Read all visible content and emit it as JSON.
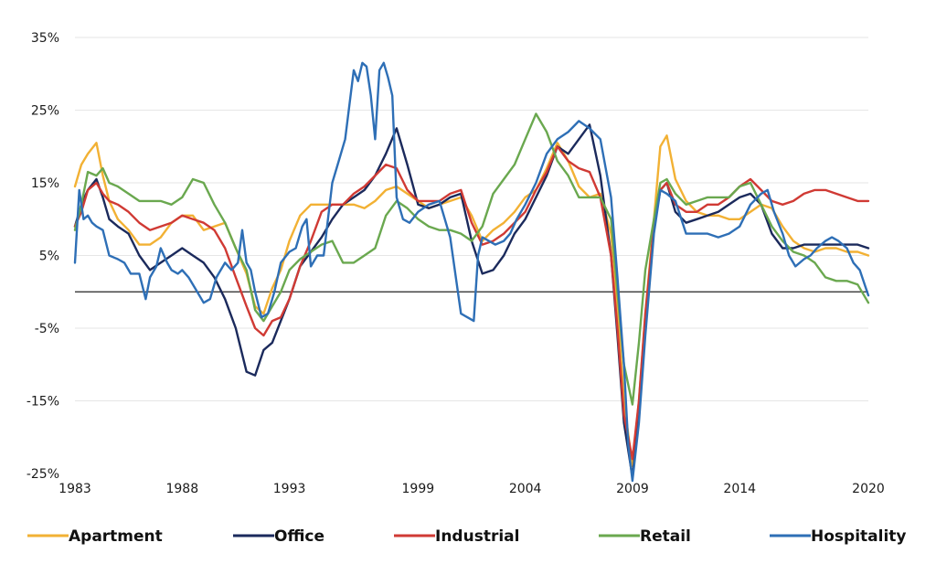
{
  "chart_data": {
    "type": "line",
    "title": "",
    "xlabel": "",
    "ylabel": "",
    "xlim": [
      1983,
      2020
    ],
    "ylim": [
      -25,
      35
    ],
    "x_ticks": [
      "1983",
      "1988",
      "1993",
      "1999",
      "2004",
      "2009",
      "2014",
      "2020"
    ],
    "y_ticks": [
      "35%",
      "25%",
      "15%",
      "5%",
      "-5%",
      "-15%",
      "-25%"
    ],
    "grid": "horizontal",
    "zero_line": true,
    "legend": "bottom",
    "series": [
      {
        "name": "Apartment",
        "color": "#f2b134",
        "x": [
          1983.0,
          1983.3,
          1983.6,
          1984.0,
          1984.3,
          1984.6,
          1985.0,
          1985.5,
          1986.0,
          1986.5,
          1987.0,
          1987.5,
          1988.0,
          1988.5,
          1989.0,
          1989.5,
          1990.0,
          1990.5,
          1991.0,
          1991.4,
          1991.8,
          1992.2,
          1992.6,
          1993.0,
          1993.5,
          1994.0,
          1994.5,
          1995.0,
          1995.5,
          1996.0,
          1996.5,
          1997.0,
          1997.5,
          1998.0,
          1998.5,
          1999.0,
          1999.5,
          2000.0,
          2000.5,
          2001.0,
          2001.5,
          2002.0,
          2002.5,
          2003.0,
          2003.5,
          2004.0,
          2004.5,
          2005.0,
          2005.5,
          2006.0,
          2006.5,
          2007.0,
          2007.5,
          2008.0,
          2008.3,
          2008.6,
          2009.0,
          2009.3,
          2009.6,
          2010.0,
          2010.3,
          2010.6,
          2011.0,
          2011.5,
          2012.0,
          2012.5,
          2013.0,
          2013.5,
          2014.0,
          2014.5,
          2015.0,
          2015.5,
          2016.0,
          2016.5,
          2017.0,
          2017.5,
          2018.0,
          2018.5,
          2019.0,
          2019.5,
          2020.0
        ],
        "y": [
          14.5,
          17.5,
          19,
          20.5,
          16,
          12.5,
          10,
          8.5,
          6.5,
          6.5,
          7.5,
          9.5,
          10.5,
          10.5,
          8.5,
          9,
          9.5,
          6,
          2.5,
          -2,
          -3,
          0.5,
          3,
          7,
          10.5,
          12,
          12,
          12,
          12,
          12,
          11.5,
          12.5,
          14,
          14.5,
          13.5,
          12.5,
          11.5,
          12,
          12.5,
          13,
          10.5,
          7,
          8.5,
          9.5,
          11,
          13,
          14,
          17,
          20.5,
          18,
          14.5,
          13,
          13.5,
          8,
          -2,
          -15,
          -24,
          -15,
          -3,
          10,
          20,
          21.5,
          15.5,
          12.5,
          11,
          10.5,
          10.5,
          10,
          10,
          11,
          12,
          11.5,
          9,
          7,
          6,
          5.5,
          6,
          6,
          5.5,
          5.5,
          5
        ]
      },
      {
        "name": "Office",
        "color": "#1b2a5c",
        "x": [
          1983.0,
          1983.3,
          1983.6,
          1984.0,
          1984.3,
          1984.6,
          1985.0,
          1985.5,
          1986.0,
          1986.5,
          1987.0,
          1987.5,
          1988.0,
          1988.5,
          1989.0,
          1989.5,
          1990.0,
          1990.5,
          1991.0,
          1991.4,
          1991.8,
          1992.2,
          1992.6,
          1993.0,
          1993.5,
          1994.0,
          1994.5,
          1995.0,
          1995.5,
          1996.0,
          1996.5,
          1997.0,
          1997.5,
          1998.0,
          1998.5,
          1999.0,
          1999.5,
          2000.0,
          2000.5,
          2001.0,
          2001.5,
          2002.0,
          2002.5,
          2003.0,
          2003.5,
          2004.0,
          2004.5,
          2005.0,
          2005.5,
          2006.0,
          2006.5,
          2007.0,
          2007.5,
          2008.0,
          2008.3,
          2008.6,
          2009.0,
          2009.3,
          2009.6,
          2010.0,
          2010.3,
          2010.6,
          2011.0,
          2011.5,
          2012.0,
          2012.5,
          2013.0,
          2013.5,
          2014.0,
          2014.5,
          2015.0,
          2015.5,
          2016.0,
          2016.5,
          2017.0,
          2017.5,
          2018.0,
          2018.5,
          2019.0,
          2019.5,
          2020.0
        ],
        "y": [
          9,
          12,
          14,
          15.5,
          13,
          10,
          9,
          8,
          5,
          3,
          4,
          5,
          6,
          5,
          4,
          2,
          -1,
          -5,
          -11,
          -11.5,
          -8,
          -7,
          -4,
          -1,
          3.5,
          5.5,
          7.5,
          10,
          12,
          13,
          14,
          16,
          19,
          22.5,
          17.5,
          12,
          11.5,
          12,
          13,
          13.5,
          7,
          2.5,
          3,
          5,
          8,
          10,
          13,
          16,
          20,
          19,
          21,
          23,
          16,
          5,
          -6,
          -18,
          -25.5,
          -17,
          -4,
          9,
          14,
          15,
          11,
          9.5,
          10,
          10.5,
          11,
          12,
          13,
          13.5,
          12,
          8,
          6,
          6,
          6.5,
          6.5,
          6.5,
          6.5,
          6.5,
          6.5,
          6
        ]
      },
      {
        "name": "Industrial",
        "color": "#d03a34",
        "x": [
          1983.0,
          1983.3,
          1983.6,
          1984.0,
          1984.3,
          1984.6,
          1985.0,
          1985.5,
          1986.0,
          1986.5,
          1987.0,
          1987.5,
          1988.0,
          1988.5,
          1989.0,
          1989.5,
          1990.0,
          1990.5,
          1991.0,
          1991.4,
          1991.8,
          1992.2,
          1992.6,
          1993.0,
          1993.5,
          1994.0,
          1994.5,
          1995.0,
          1995.5,
          1996.0,
          1996.5,
          1997.0,
          1997.5,
          1998.0,
          1998.5,
          1999.0,
          1999.5,
          2000.0,
          2000.5,
          2001.0,
          2001.5,
          2002.0,
          2002.5,
          2003.0,
          2003.5,
          2004.0,
          2004.5,
          2005.0,
          2005.5,
          2006.0,
          2006.5,
          2007.0,
          2007.5,
          2008.0,
          2008.3,
          2008.6,
          2009.0,
          2009.3,
          2009.6,
          2010.0,
          2010.3,
          2010.6,
          2011.0,
          2011.5,
          2012.0,
          2012.5,
          2013.0,
          2013.5,
          2014.0,
          2014.5,
          2015.0,
          2015.5,
          2016.0,
          2016.5,
          2017.0,
          2017.5,
          2018.0,
          2018.5,
          2019.0,
          2019.5,
          2020.0
        ],
        "y": [
          9,
          11,
          14,
          15,
          13.5,
          12.5,
          12,
          11,
          9.5,
          8.5,
          9,
          9.5,
          10.5,
          10,
          9.5,
          8.5,
          6,
          2,
          -2,
          -5,
          -6,
          -4,
          -3.5,
          -1,
          3.5,
          7,
          11,
          12,
          12,
          13.5,
          14.5,
          16,
          17.5,
          17,
          14,
          12.5,
          12.5,
          12.5,
          13.5,
          14,
          9.5,
          6.5,
          7,
          8,
          9.5,
          11,
          14,
          16.5,
          20,
          18,
          17,
          16.5,
          13,
          5,
          -5,
          -17,
          -23,
          -15,
          -3,
          9,
          14,
          15,
          12,
          11,
          11,
          12,
          12,
          13,
          14.5,
          15.5,
          14,
          12.5,
          12,
          12.5,
          13.5,
          14,
          14,
          13.5,
          13,
          12.5,
          12.5
        ]
      },
      {
        "name": "Retail",
        "color": "#6aa84f",
        "x": [
          1983.0,
          1983.3,
          1983.6,
          1984.0,
          1984.3,
          1984.6,
          1985.0,
          1985.5,
          1986.0,
          1986.5,
          1987.0,
          1987.5,
          1988.0,
          1988.5,
          1989.0,
          1989.5,
          1990.0,
          1990.5,
          1991.0,
          1991.4,
          1991.8,
          1992.2,
          1992.6,
          1993.0,
          1993.5,
          1994.0,
          1994.5,
          1995.0,
          1995.5,
          1996.0,
          1996.5,
          1997.0,
          1997.5,
          1998.0,
          1998.5,
          1999.0,
          1999.5,
          2000.0,
          2000.5,
          2001.0,
          2001.5,
          2002.0,
          2002.5,
          2003.0,
          2003.5,
          2004.0,
          2004.5,
          2005.0,
          2005.5,
          2006.0,
          2006.5,
          2007.0,
          2007.5,
          2008.0,
          2008.3,
          2008.6,
          2009.0,
          2009.3,
          2009.6,
          2010.0,
          2010.3,
          2010.6,
          2011.0,
          2011.5,
          2012.0,
          2012.5,
          2013.0,
          2013.5,
          2014.0,
          2014.5,
          2015.0,
          2015.5,
          2016.0,
          2016.5,
          2017.0,
          2017.5,
          2018.0,
          2018.5,
          2019.0,
          2019.5,
          2020.0
        ],
        "y": [
          8.5,
          12,
          16.5,
          16,
          17,
          15,
          14.5,
          13.5,
          12.5,
          12.5,
          12.5,
          12,
          13,
          15.5,
          15,
          12,
          9.5,
          6,
          3,
          -2.5,
          -4,
          -2,
          0,
          3,
          4.5,
          5.5,
          6.5,
          7,
          4,
          4,
          5,
          6,
          10.5,
          12.5,
          11.5,
          10,
          9,
          8.5,
          8.5,
          8,
          7,
          9,
          13.5,
          15.5,
          17.5,
          21,
          24.5,
          22,
          18,
          16,
          13,
          13,
          13,
          10,
          0,
          -10,
          -15.5,
          -7,
          3,
          10,
          15,
          15.5,
          13.5,
          12,
          12.5,
          13,
          13,
          13,
          14.5,
          15,
          12,
          9,
          7,
          5.5,
          5,
          4,
          2,
          1.5,
          1.5,
          1,
          -1.5
        ]
      },
      {
        "name": "Hospitality",
        "color": "#2e6fb6",
        "x": [
          1983.0,
          1983.2,
          1983.4,
          1983.6,
          1983.8,
          1984.0,
          1984.3,
          1984.6,
          1985.0,
          1985.3,
          1985.6,
          1986.0,
          1986.3,
          1986.5,
          1986.8,
          1987.0,
          1987.3,
          1987.5,
          1987.8,
          1988.0,
          1988.3,
          1988.6,
          1989.0,
          1989.3,
          1989.6,
          1990.0,
          1990.3,
          1990.6,
          1990.8,
          1991.0,
          1991.2,
          1991.4,
          1991.7,
          1992.0,
          1992.3,
          1992.6,
          1993.0,
          1993.3,
          1993.6,
          1993.8,
          1994.0,
          1994.3,
          1994.6,
          1995.0,
          1995.3,
          1995.6,
          1996.0,
          1996.2,
          1996.4,
          1996.6,
          1996.8,
          1997.0,
          1997.2,
          1997.4,
          1997.6,
          1997.8,
          1998.0,
          1998.3,
          1998.6,
          1999.0,
          1999.5,
          2000.0,
          2000.5,
          2001.0,
          2001.3,
          2001.6,
          2001.8,
          2002.0,
          2002.3,
          2002.6,
          2003.0,
          2003.3,
          2003.6,
          2004.0,
          2004.5,
          2005.0,
          2005.5,
          2006.0,
          2006.5,
          2007.0,
          2007.5,
          2008.0,
          2008.3,
          2008.6,
          2008.8,
          2009.0,
          2009.3,
          2009.6,
          2010.0,
          2010.3,
          2010.6,
          2011.0,
          2011.5,
          2012.0,
          2012.5,
          2013.0,
          2013.5,
          2014.0,
          2014.5,
          2015.0,
          2015.3,
          2015.6,
          2016.0,
          2016.3,
          2016.6,
          2017.0,
          2017.3,
          2017.6,
          2018.0,
          2018.3,
          2018.6,
          2019.0,
          2019.3,
          2019.6,
          2020.0
        ],
        "y": [
          4,
          14,
          10,
          10.5,
          9.5,
          9,
          8.5,
          5,
          4.5,
          4,
          2.5,
          2.5,
          -1,
          2,
          3.5,
          6,
          4,
          3,
          2.5,
          3,
          2,
          0.5,
          -1.5,
          -1,
          2,
          4,
          3,
          4,
          8.5,
          4,
          3,
          0,
          -3.5,
          -3,
          0,
          4,
          5.5,
          6,
          9,
          10,
          3.5,
          5,
          5,
          15,
          18,
          21,
          30.5,
          29,
          31.5,
          31,
          27,
          21,
          30.5,
          31.5,
          29.5,
          27,
          13,
          10,
          9.5,
          11,
          12,
          12.5,
          7.5,
          -3,
          -3.5,
          -4,
          5,
          7.5,
          7,
          6.5,
          7,
          8,
          10,
          12,
          15,
          19,
          21,
          22,
          23.5,
          22.5,
          21,
          13,
          2,
          -10,
          -21,
          -26,
          -18,
          -6,
          8,
          14,
          13.5,
          12.5,
          8,
          8,
          8,
          7.5,
          8,
          9,
          12,
          13.5,
          14,
          11,
          8,
          5,
          3.5,
          4.5,
          5,
          6,
          7,
          7.5,
          7,
          6,
          4,
          3,
          -0.5
        ]
      }
    ]
  }
}
